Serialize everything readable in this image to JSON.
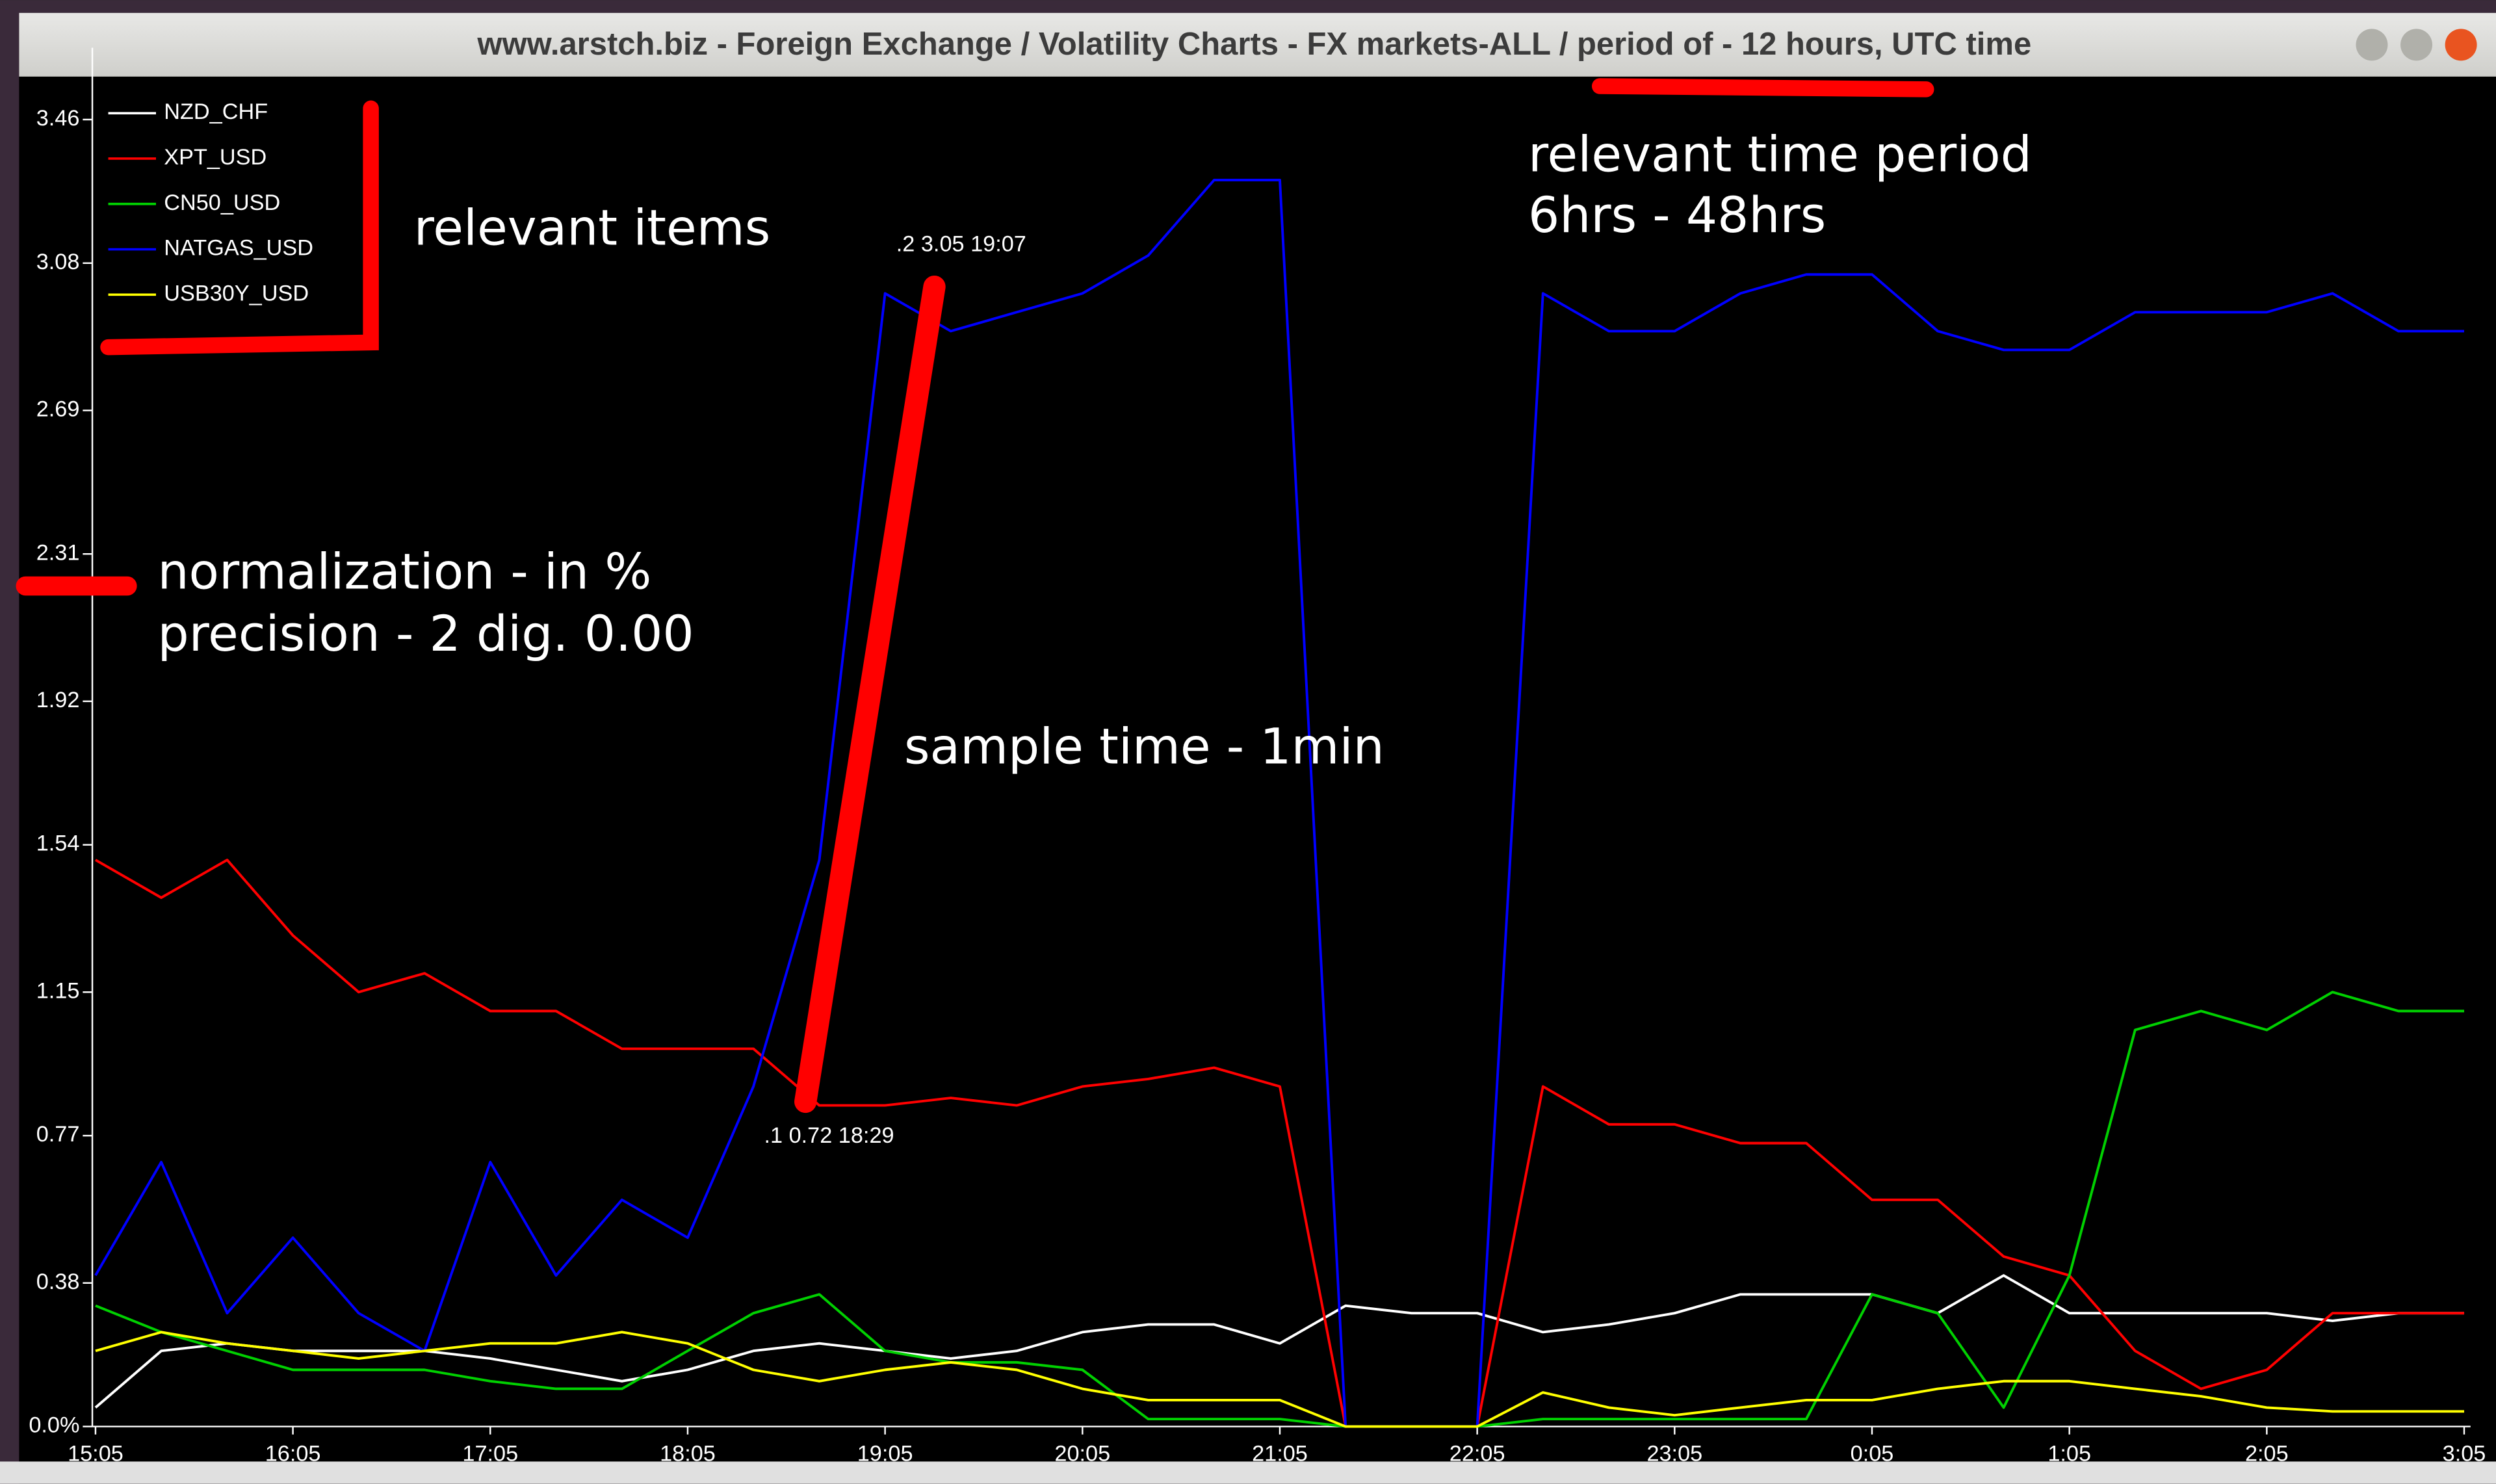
{
  "window": {
    "title": "www.arstch.biz - Foreign Exchange / Volatility Charts - FX markets-ALL / period of - 12 hours, UTC time"
  },
  "chart_data": {
    "type": "line",
    "x": [
      "15:05",
      "15:25",
      "15:45",
      "16:05",
      "16:25",
      "16:45",
      "17:05",
      "17:25",
      "17:45",
      "18:05",
      "18:25",
      "18:45",
      "19:05",
      "19:25",
      "19:45",
      "20:05",
      "20:25",
      "20:45",
      "21:05",
      "21:25",
      "21:45",
      "22:05",
      "22:25",
      "22:45",
      "23:05",
      "23:25",
      "23:45",
      "0:05",
      "0:25",
      "0:45",
      "1:05",
      "1:25",
      "1:45",
      "2:05",
      "2:25",
      "2:45",
      "3:05"
    ],
    "series": [
      {
        "name": "NZD_CHF",
        "color": "#ffffff",
        "values": [
          0.05,
          0.2,
          0.22,
          0.2,
          0.2,
          0.2,
          0.18,
          0.15,
          0.12,
          0.15,
          0.2,
          0.22,
          0.2,
          0.18,
          0.2,
          0.25,
          0.27,
          0.27,
          0.22,
          0.32,
          0.3,
          0.3,
          0.25,
          0.27,
          0.3,
          0.35,
          0.35,
          0.35,
          0.3,
          0.4,
          0.3,
          0.3,
          0.3,
          0.3,
          0.28,
          0.3,
          0.3
        ]
      },
      {
        "name": "XPT_USD",
        "color": "#ff0000",
        "values": [
          1.5,
          1.4,
          1.5,
          1.3,
          1.15,
          1.2,
          1.1,
          1.1,
          1.0,
          1.0,
          1.0,
          0.85,
          0.85,
          0.87,
          0.85,
          0.9,
          0.92,
          0.95,
          0.9,
          0.0,
          0.0,
          0.0,
          0.9,
          0.8,
          0.8,
          0.75,
          0.75,
          0.6,
          0.6,
          0.45,
          0.4,
          0.2,
          0.1,
          0.15,
          0.3,
          0.3,
          0.3
        ]
      },
      {
        "name": "CN50_USD",
        "color": "#00d000",
        "values": [
          0.32,
          0.25,
          0.2,
          0.15,
          0.15,
          0.15,
          0.12,
          0.1,
          0.1,
          0.2,
          0.3,
          0.35,
          0.2,
          0.17,
          0.17,
          0.15,
          0.02,
          0.02,
          0.02,
          0.0,
          0.0,
          0.0,
          0.02,
          0.02,
          0.02,
          0.02,
          0.02,
          0.35,
          0.3,
          0.05,
          0.4,
          1.05,
          1.1,
          1.05,
          1.15,
          1.1,
          1.1
        ]
      },
      {
        "name": "NATGAS_USD",
        "color": "#0000ff",
        "values": [
          0.4,
          0.7,
          0.3,
          0.5,
          0.3,
          0.2,
          0.7,
          0.4,
          0.6,
          0.5,
          0.9,
          1.5,
          3.0,
          2.9,
          2.95,
          3.0,
          3.1,
          3.3,
          3.3,
          0.0,
          0.0,
          0.0,
          3.0,
          2.9,
          2.9,
          3.0,
          3.05,
          3.05,
          2.9,
          2.85,
          2.85,
          2.95,
          2.95,
          2.95,
          3.0,
          2.9,
          2.9
        ]
      },
      {
        "name": "USB30Y_USD",
        "color": "#ffff00",
        "values": [
          0.2,
          0.25,
          0.22,
          0.2,
          0.18,
          0.2,
          0.22,
          0.22,
          0.25,
          0.22,
          0.15,
          0.12,
          0.15,
          0.17,
          0.15,
          0.1,
          0.07,
          0.07,
          0.07,
          0.0,
          0.0,
          0.0,
          0.09,
          0.05,
          0.03,
          0.05,
          0.07,
          0.07,
          0.1,
          0.12,
          0.12,
          0.1,
          0.08,
          0.05,
          0.04,
          0.04,
          0.04
        ]
      }
    ],
    "ylim": [
      0,
      3.65
    ],
    "yticks": [
      {
        "value": 0,
        "label": "0.0%"
      },
      0.38,
      0.77,
      1.15,
      1.54,
      1.92,
      2.31,
      2.69,
      3.08,
      3.46
    ],
    "xticks": [
      "15:05",
      "16:05",
      "17:05",
      "18:05",
      "19:05",
      "20:05",
      "21:05",
      "22:05",
      "23:05",
      "0:05",
      "1:05",
      "2:05",
      "3:05"
    ],
    "legend": "upper left",
    "data_labels": [
      ".1 0.72 18:29",
      ".2 3.05 19:07"
    ],
    "annotations": [
      "relevant items",
      "relevant time period",
      "6hrs - 48hrs",
      "normalization - in %",
      "precision - 2 dig. 0.00",
      "sample time - 1min"
    ]
  }
}
